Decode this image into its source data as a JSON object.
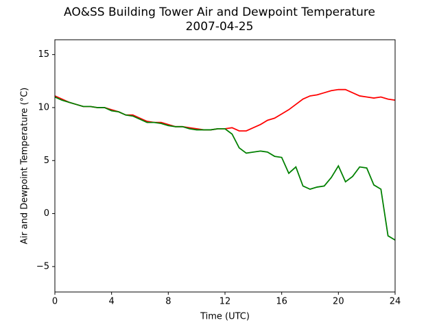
{
  "chart_data": {
    "type": "line",
    "title": "AO&SS Building Tower Air and Dewpoint Temperature",
    "subtitle": "2007-04-25",
    "x_label": "Time (UTC)",
    "y_label": "Air and Dewpoint Temperature (°C)",
    "x": [
      0,
      0.5,
      1,
      1.5,
      2,
      2.5,
      3,
      3.5,
      4,
      4.5,
      5,
      5.5,
      6,
      6.5,
      7,
      7.5,
      8,
      8.5,
      9,
      9.5,
      10,
      10.5,
      11,
      11.5,
      12,
      12.5,
      13,
      13.5,
      14,
      14.5,
      15,
      15.5,
      16,
      16.5,
      17,
      17.5,
      18,
      18.5,
      19,
      19.5,
      20,
      20.5,
      21,
      21.5,
      22,
      22.5,
      23,
      23.5,
      24
    ],
    "series": [
      {
        "color": "#ff0000",
        "values": [
          11.1,
          10.8,
          10.5,
          10.3,
          10.1,
          10.1,
          10.0,
          10.0,
          9.8,
          9.6,
          9.3,
          9.3,
          9.0,
          8.7,
          8.6,
          8.6,
          8.4,
          8.2,
          8.2,
          8.1,
          8.0,
          7.9,
          7.9,
          8.0,
          8.0,
          8.1,
          7.8,
          7.8,
          8.1,
          8.4,
          8.8,
          9.0,
          9.4,
          9.8,
          10.3,
          10.8,
          11.1,
          11.2,
          11.4,
          11.6,
          11.7,
          11.7,
          11.4,
          11.1,
          11.0,
          10.9,
          11.0,
          10.8,
          10.7
        ]
      },
      {
        "color": "#008000",
        "values": [
          11.0,
          10.7,
          10.5,
          10.3,
          10.1,
          10.1,
          10.0,
          10.0,
          9.7,
          9.6,
          9.3,
          9.2,
          8.9,
          8.6,
          8.6,
          8.5,
          8.3,
          8.2,
          8.2,
          8.0,
          7.9,
          7.9,
          7.9,
          8.0,
          8.0,
          7.5,
          6.2,
          5.7,
          5.8,
          5.9,
          5.8,
          5.4,
          5.3,
          3.8,
          4.4,
          2.6,
          2.3,
          2.5,
          2.6,
          3.4,
          4.5,
          3.0,
          3.5,
          4.4,
          4.3,
          2.7,
          2.3,
          -2.1,
          -2.5
        ]
      }
    ],
    "xlim": [
      0,
      24
    ],
    "xticks": [
      0,
      4,
      8,
      12,
      16,
      20,
      24
    ],
    "ylim": [
      -7.4,
      16.4
    ],
    "yticks": [
      {
        "value": -5,
        "label": "−5"
      },
      0,
      5,
      10,
      15
    ],
    "grid": false
  }
}
